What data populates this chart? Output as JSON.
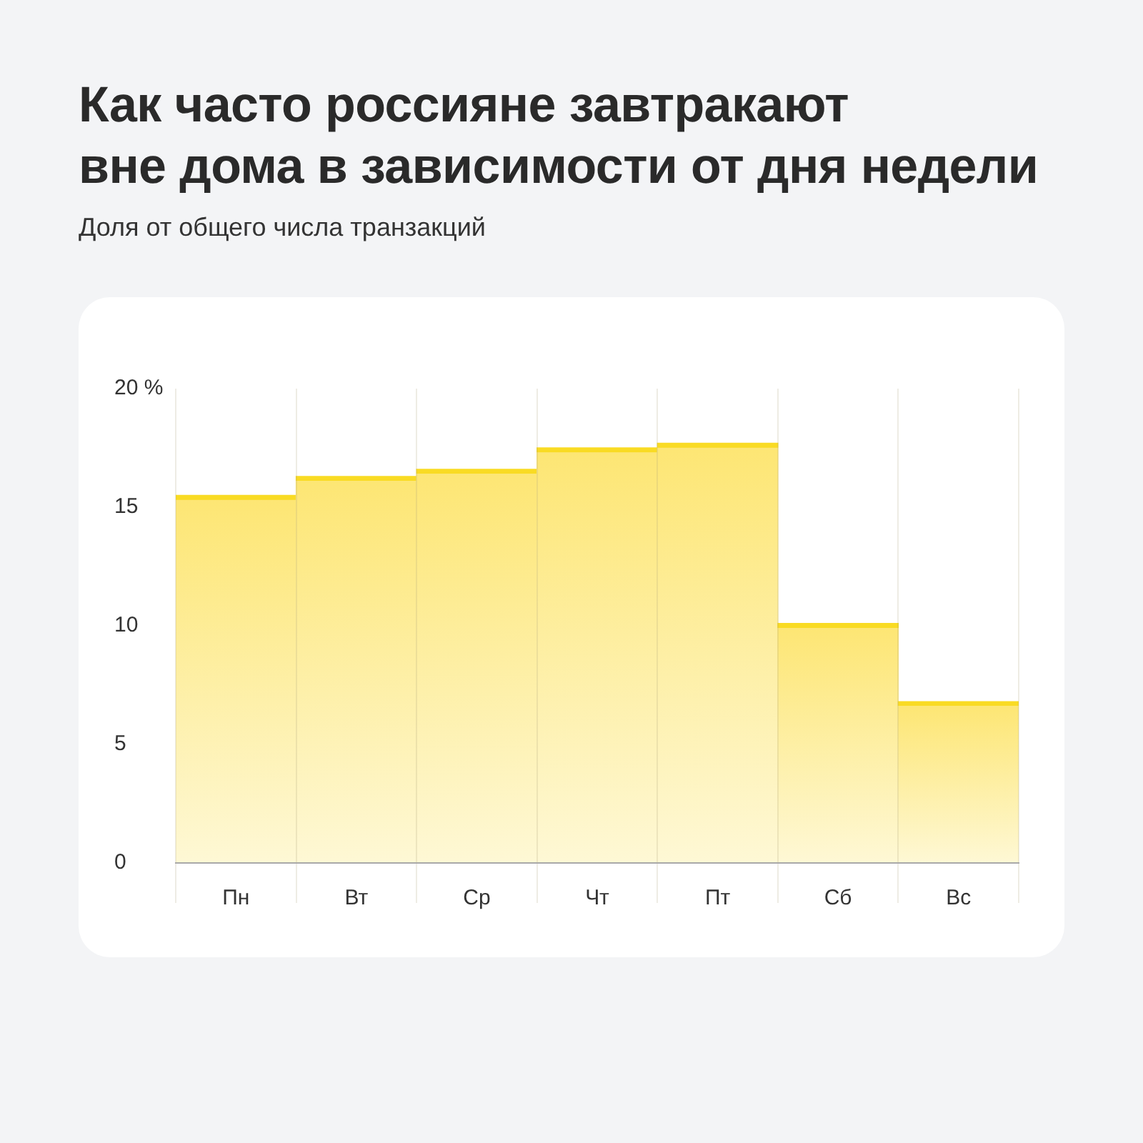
{
  "chart_data": {
    "type": "bar",
    "title": "Как часто россияне завтракают\nвне дома в зависимости от дня недели",
    "subtitle": "Доля от общего числа транзакций",
    "categories": [
      "Пн",
      "Вт",
      "Ср",
      "Чт",
      "Пт",
      "Сб",
      "Вс"
    ],
    "values": [
      15.5,
      16.3,
      16.6,
      17.5,
      17.7,
      10.1,
      6.8
    ],
    "color": "#fde674",
    "ylim": [
      0,
      20
    ],
    "yticks": [
      0,
      5,
      10,
      15,
      {
        "value": 20,
        "label": "20 %"
      }
    ],
    "grid": "x"
  }
}
